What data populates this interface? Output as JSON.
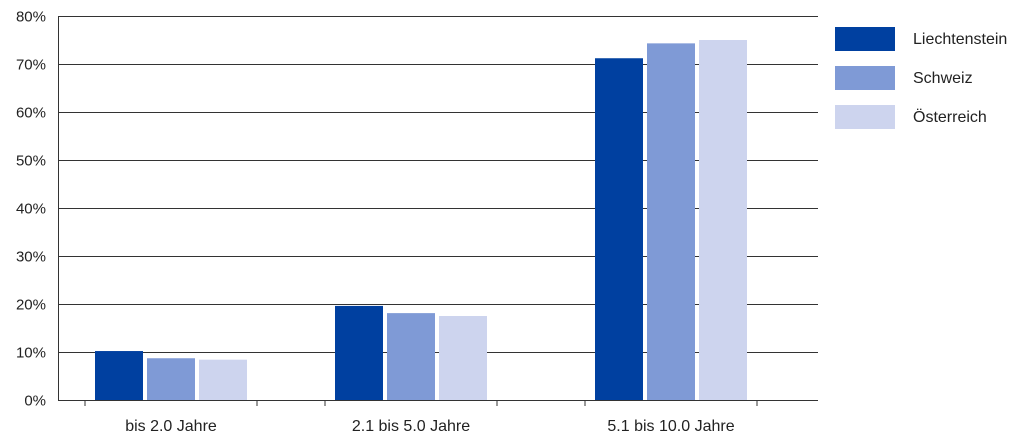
{
  "chart_data": {
    "type": "bar",
    "title": "",
    "xlabel": "",
    "ylabel": "",
    "categories": [
      "bis 2.0 Jahre",
      "2.1 bis 5.0 Jahre",
      "5.1 bis 10.0 Jahre"
    ],
    "series": [
      {
        "name": "Liechtenstein",
        "color": "#0040A0",
        "values": [
          10.2,
          19.6,
          71.2
        ]
      },
      {
        "name": "Schweiz",
        "color": "#7F9AD6",
        "values": [
          8.7,
          18.1,
          74.3
        ]
      },
      {
        "name": "Österreich",
        "color": "#CDD4EE",
        "values": [
          8.4,
          17.5,
          75.0
        ]
      }
    ],
    "ylim": [
      0,
      80
    ],
    "yticks": [
      0,
      10,
      20,
      30,
      40,
      50,
      60,
      70,
      80
    ],
    "ytick_labels": [
      "0%",
      "10%",
      "20%",
      "30%",
      "40%",
      "50%",
      "60%",
      "70%",
      "80%"
    ],
    "grid": true,
    "legend_position": "top-right"
  }
}
